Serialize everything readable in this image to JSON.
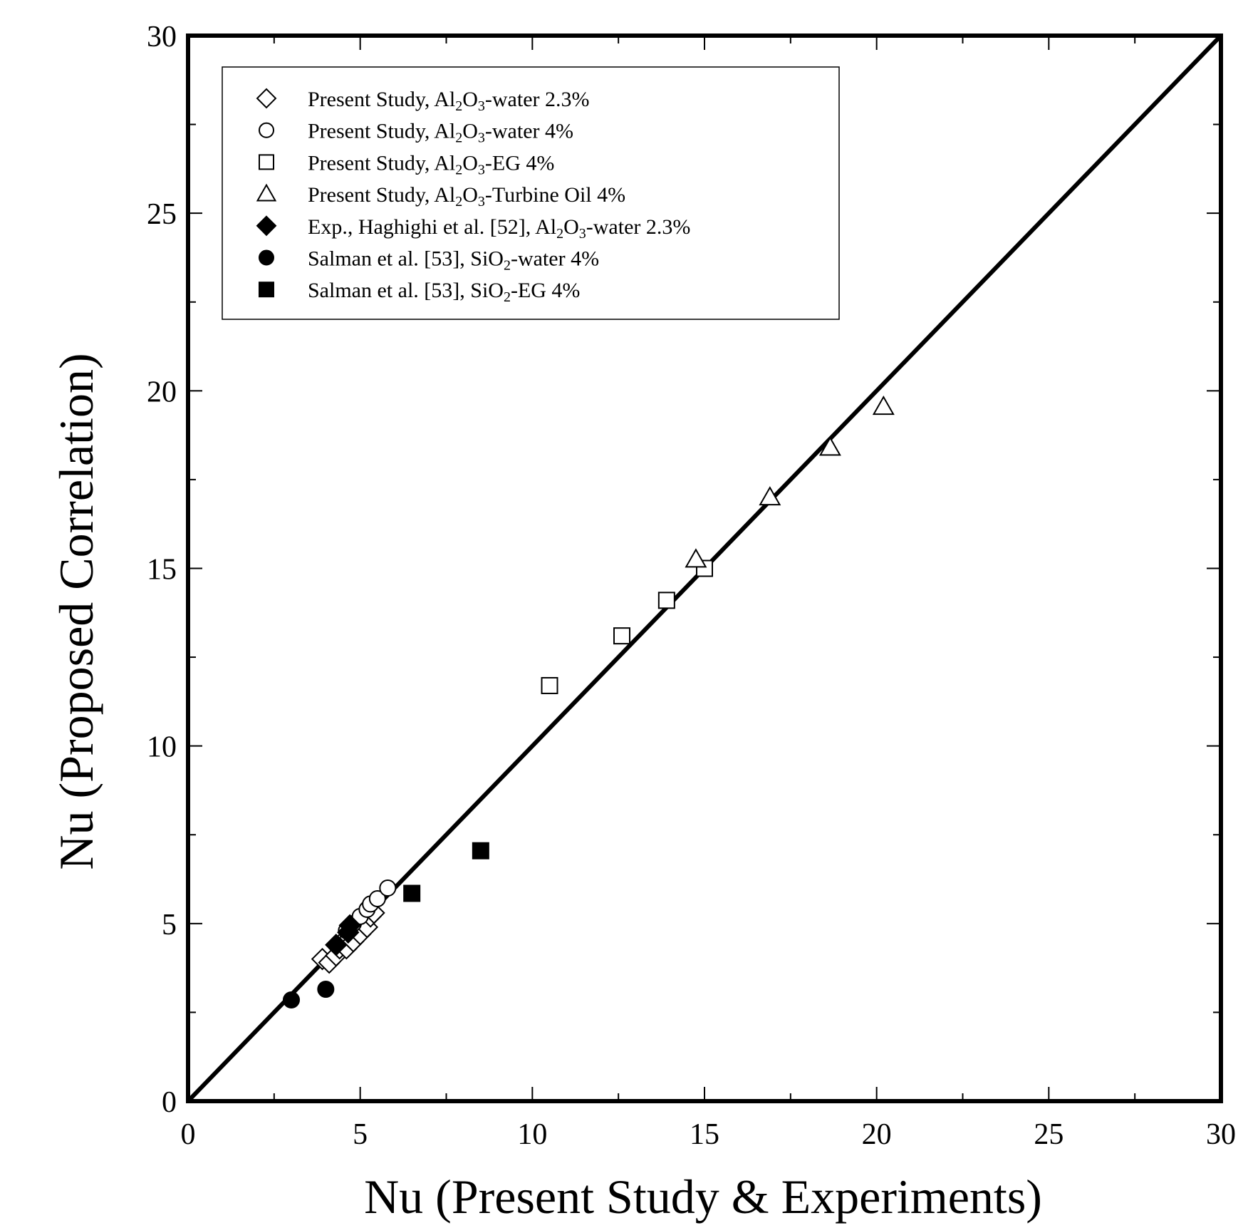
{
  "chart_data": {
    "type": "scatter",
    "xlabel": "Nu (Present Study & Experiments)",
    "ylabel": "Nu (Proposed Correlation)",
    "xlim": [
      0,
      30
    ],
    "ylim": [
      0,
      30
    ],
    "xticks": [
      "0",
      "5",
      "10",
      "15",
      "20",
      "25",
      "30"
    ],
    "yticks": [
      "0",
      "5",
      "10",
      "15",
      "20",
      "25",
      "30"
    ],
    "reference_line": {
      "name": "y = x",
      "x": [
        0,
        30
      ],
      "y": [
        0,
        30
      ]
    },
    "legend_position": "top-left",
    "series": [
      {
        "key": "al2o3-water-2-3",
        "legend": [
          "Present Study, Al",
          "2",
          "O",
          "3",
          "-water 2.3%"
        ],
        "marker": "diamond",
        "filled": false,
        "points": [
          [
            3.9,
            4.0
          ],
          [
            4.1,
            3.9
          ],
          [
            4.3,
            4.1
          ],
          [
            4.4,
            4.3
          ],
          [
            4.5,
            4.5
          ],
          [
            4.6,
            4.3
          ],
          [
            4.7,
            4.6
          ],
          [
            4.8,
            4.5
          ],
          [
            4.9,
            4.8
          ],
          [
            5.0,
            4.7
          ],
          [
            5.1,
            5.0
          ],
          [
            5.2,
            4.9
          ],
          [
            5.3,
            5.2
          ],
          [
            5.4,
            5.3
          ]
        ]
      },
      {
        "key": "al2o3-water-4",
        "legend": [
          "Present Study, Al",
          "2",
          "O",
          "3",
          "-water 4%"
        ],
        "marker": "circle",
        "filled": false,
        "points": [
          [
            4.6,
            4.8
          ],
          [
            4.8,
            5.0
          ],
          [
            5.0,
            5.2
          ],
          [
            5.2,
            5.4
          ],
          [
            5.3,
            5.55
          ],
          [
            5.5,
            5.7
          ],
          [
            5.8,
            6.0
          ]
        ]
      },
      {
        "key": "al2o3-eg-4",
        "legend": [
          "Present Study, Al",
          "2",
          "O",
          "3",
          "-EG 4%"
        ],
        "marker": "square",
        "filled": false,
        "points": [
          [
            10.5,
            11.7
          ],
          [
            12.6,
            13.1
          ],
          [
            13.9,
            14.1
          ],
          [
            15.0,
            15.0
          ]
        ]
      },
      {
        "key": "al2o3-turbine-oil-4",
        "legend": [
          "Present Study, Al",
          "2",
          "O",
          "3",
          "-Turbine Oil 4%"
        ],
        "marker": "triangle",
        "filled": false,
        "points": [
          [
            14.75,
            15.25
          ],
          [
            16.9,
            17.0
          ],
          [
            18.65,
            18.4
          ],
          [
            20.2,
            19.55
          ]
        ]
      },
      {
        "key": "haghighi-al2o3-water-2-3",
        "legend": [
          "Exp., Haghighi et al. [52], Al",
          "2",
          "O",
          "3",
          "-water 2.3%"
        ],
        "marker": "diamond",
        "filled": true,
        "points": [
          [
            4.3,
            4.4
          ],
          [
            4.65,
            4.75
          ],
          [
            4.7,
            4.95
          ]
        ]
      },
      {
        "key": "salman-sio2-water-4",
        "legend": [
          "Salman et al. [53], SiO",
          "2",
          "-water 4%",
          "",
          ""
        ],
        "marker": "circle",
        "filled": true,
        "points": [
          [
            3.0,
            2.85
          ],
          [
            4.0,
            3.15
          ]
        ]
      },
      {
        "key": "salman-sio2-eg-4",
        "legend": [
          "Salman et al. [53], SiO",
          "2",
          "-EG 4%",
          "",
          ""
        ],
        "marker": "square",
        "filled": true,
        "points": [
          [
            6.5,
            5.85
          ],
          [
            8.5,
            7.05
          ]
        ]
      }
    ]
  }
}
